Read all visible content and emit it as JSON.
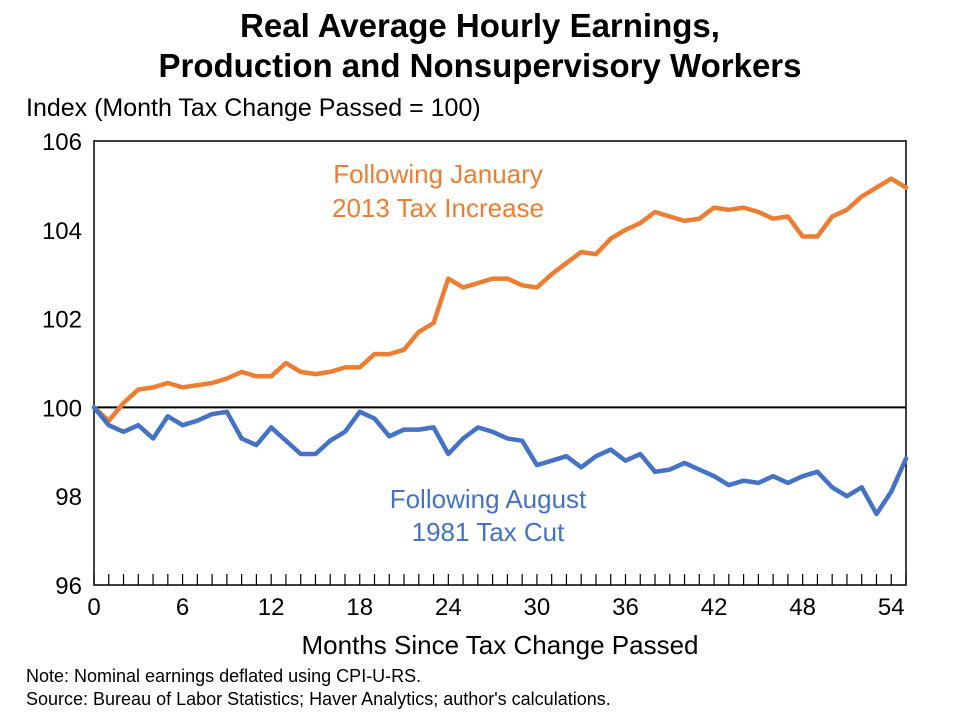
{
  "chart_data": {
    "type": "line",
    "title_line1": "Real Average Hourly Earnings,",
    "title_line2": "Production and Nonsupervisory Workers",
    "ylabel": "Index (Month Tax Change Passed = 100)",
    "xlabel": "Months Since Tax Change Passed",
    "xlim": [
      0,
      55
    ],
    "ylim": [
      96,
      106
    ],
    "x_ticks": [
      0,
      6,
      12,
      18,
      24,
      30,
      36,
      42,
      48,
      54
    ],
    "y_ticks": [
      96,
      98,
      100,
      102,
      104,
      106
    ],
    "reference_line": 100,
    "grid": false,
    "series": [
      {
        "name_line1": "Following January",
        "name_line2": "2013 Tax Increase",
        "color": "#ED7D31",
        "values": [
          100.0,
          99.7,
          100.1,
          100.4,
          100.45,
          100.55,
          100.45,
          100.5,
          100.55,
          100.65,
          100.8,
          100.7,
          100.7,
          101.0,
          100.8,
          100.75,
          100.8,
          100.9,
          100.9,
          101.2,
          101.2,
          101.3,
          101.7,
          101.9,
          102.9,
          102.7,
          102.8,
          102.9,
          102.9,
          102.75,
          102.7,
          103.0,
          103.25,
          103.5,
          103.45,
          103.8,
          104.0,
          104.15,
          104.4,
          104.3,
          104.2,
          104.25,
          104.5,
          104.45,
          104.5,
          104.4,
          104.25,
          104.3,
          103.85,
          103.85,
          104.3,
          104.45,
          104.75,
          104.95,
          105.15,
          104.95
        ]
      },
      {
        "name_line1": "Following August",
        "name_line2": "1981 Tax Cut",
        "color": "#4472C4",
        "values": [
          100.0,
          99.6,
          99.45,
          99.6,
          99.3,
          99.8,
          99.6,
          99.7,
          99.85,
          99.9,
          99.3,
          99.15,
          99.55,
          99.25,
          98.95,
          98.95,
          99.25,
          99.45,
          99.9,
          99.75,
          99.35,
          99.5,
          99.5,
          99.55,
          98.95,
          99.3,
          99.55,
          99.45,
          99.3,
          99.25,
          98.7,
          98.8,
          98.9,
          98.65,
          98.9,
          99.05,
          98.8,
          98.95,
          98.55,
          98.6,
          98.75,
          98.6,
          98.45,
          98.25,
          98.35,
          98.3,
          98.45,
          98.3,
          98.45,
          98.55,
          98.2,
          98.0,
          98.2,
          97.6,
          98.1,
          98.85
        ]
      }
    ],
    "notes": [
      "Note: Nominal earnings deflated using CPI-U-RS.",
      "Source: Bureau of Labor Statistics; Haver Analytics; author's calculations."
    ]
  }
}
